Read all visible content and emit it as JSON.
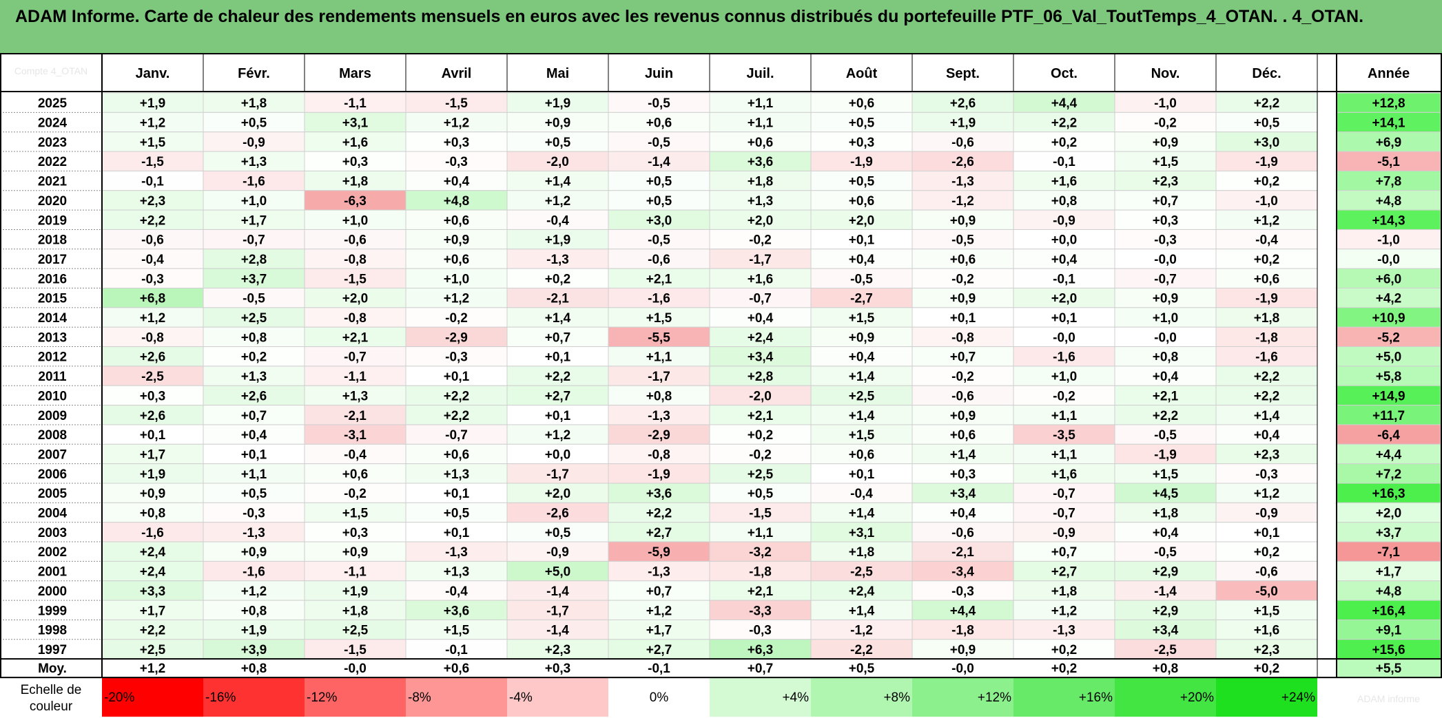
{
  "title": "ADAM Informe. Carte de chaleur des rendements mensuels en euros avec les revenus connus distribués du portefeuille PTF_06_Val_ToutTemps_4_OTAN. . 4_OTAN.",
  "corner_label": "Compte 4_OTAN",
  "colors": {
    "title_bg": "#7ec87e",
    "grid": "#c8c8c8",
    "border": "#000000",
    "neg_strong": "#ff0000",
    "pos_strong": "#1fe01f",
    "neutral": "#ffffff"
  },
  "chart_data": {
    "type": "heatmap",
    "unit": "%",
    "columns": [
      "Janv.",
      "Févr.",
      "Mars",
      "Avril",
      "Mai",
      "Juin",
      "Juil.",
      "Août",
      "Sept.",
      "Oct.",
      "Nov.",
      "Déc."
    ],
    "annual_header": "Année",
    "rows": [
      {
        "year": "2025",
        "values": [
          "+1,9",
          "+1,8",
          "-1,1",
          "-1,5",
          "+1,9",
          "-0,5",
          "+1,1",
          "+0,6",
          "+2,6",
          "+4,4",
          "-1,0",
          "+2,2"
        ],
        "annual": "+12,8"
      },
      {
        "year": "2024",
        "values": [
          "+1,2",
          "+0,5",
          "+3,1",
          "+1,2",
          "+0,9",
          "+0,6",
          "+1,1",
          "+0,5",
          "+1,9",
          "+2,2",
          "-0,2",
          "+0,5"
        ],
        "annual": "+14,1"
      },
      {
        "year": "2023",
        "values": [
          "+1,5",
          "-0,9",
          "+1,6",
          "+0,3",
          "+0,5",
          "-0,5",
          "+0,6",
          "+0,3",
          "-0,6",
          "+0,2",
          "+0,9",
          "+3,0"
        ],
        "annual": "+6,9"
      },
      {
        "year": "2022",
        "values": [
          "-1,5",
          "+1,3",
          "+0,3",
          "-0,3",
          "-2,0",
          "-1,4",
          "+3,6",
          "-1,9",
          "-2,6",
          "-0,1",
          "+1,5",
          "-1,9"
        ],
        "annual": "-5,1"
      },
      {
        "year": "2021",
        "values": [
          "-0,1",
          "-1,6",
          "+1,8",
          "+0,4",
          "+1,4",
          "+0,5",
          "+1,8",
          "+0,5",
          "-1,3",
          "+1,6",
          "+2,3",
          "+0,2"
        ],
        "annual": "+7,8"
      },
      {
        "year": "2020",
        "values": [
          "+2,3",
          "+1,0",
          "-6,3",
          "+4,8",
          "+1,2",
          "+0,5",
          "+1,3",
          "+0,6",
          "-1,2",
          "+0,8",
          "+0,7",
          "-1,0"
        ],
        "annual": "+4,8"
      },
      {
        "year": "2019",
        "values": [
          "+2,2",
          "+1,7",
          "+1,0",
          "+0,6",
          "-0,4",
          "+3,0",
          "+2,0",
          "+2,0",
          "+0,9",
          "-0,9",
          "+0,3",
          "+1,2"
        ],
        "annual": "+14,3"
      },
      {
        "year": "2018",
        "values": [
          "-0,6",
          "-0,7",
          "-0,6",
          "+0,9",
          "+1,9",
          "-0,5",
          "-0,2",
          "+0,1",
          "-0,5",
          "+0,0",
          "-0,3",
          "-0,4"
        ],
        "annual": "-1,0"
      },
      {
        "year": "2017",
        "values": [
          "-0,4",
          "+2,8",
          "-0,8",
          "+0,6",
          "-1,3",
          "-0,6",
          "-1,7",
          "+0,4",
          "+0,6",
          "+0,4",
          "-0,0",
          "+0,2"
        ],
        "annual": "-0,0"
      },
      {
        "year": "2016",
        "values": [
          "-0,3",
          "+3,7",
          "-1,5",
          "+1,0",
          "+0,2",
          "+2,1",
          "+1,6",
          "-0,5",
          "-0,2",
          "-0,1",
          "-0,7",
          "+0,6"
        ],
        "annual": "+6,0"
      },
      {
        "year": "2015",
        "values": [
          "+6,8",
          "-0,5",
          "+2,0",
          "+1,2",
          "-2,1",
          "-1,6",
          "-0,7",
          "-2,7",
          "+0,9",
          "+2,0",
          "+0,9",
          "-1,9"
        ],
        "annual": "+4,2"
      },
      {
        "year": "2014",
        "values": [
          "+1,2",
          "+2,5",
          "-0,8",
          "-0,2",
          "+1,4",
          "+1,5",
          "+0,4",
          "+1,5",
          "+0,1",
          "+0,1",
          "+1,0",
          "+1,8"
        ],
        "annual": "+10,9"
      },
      {
        "year": "2013",
        "values": [
          "-0,8",
          "+0,8",
          "+2,1",
          "-2,9",
          "+0,7",
          "-5,5",
          "+2,4",
          "+0,9",
          "-0,8",
          "-0,0",
          "-0,0",
          "-1,8"
        ],
        "annual": "-5,2"
      },
      {
        "year": "2012",
        "values": [
          "+2,6",
          "+0,2",
          "-0,7",
          "-0,3",
          "+0,1",
          "+1,1",
          "+3,4",
          "+0,4",
          "+0,7",
          "-1,6",
          "+0,8",
          "-1,6"
        ],
        "annual": "+5,0"
      },
      {
        "year": "2011",
        "values": [
          "-2,5",
          "+1,3",
          "-1,1",
          "+0,1",
          "+2,2",
          "-1,7",
          "+2,8",
          "+1,4",
          "-0,2",
          "+1,0",
          "+0,4",
          "+2,2"
        ],
        "annual": "+5,8"
      },
      {
        "year": "2010",
        "values": [
          "+0,3",
          "+2,6",
          "+1,3",
          "+2,2",
          "+2,7",
          "+0,8",
          "-2,0",
          "+2,5",
          "-0,6",
          "-0,2",
          "+2,1",
          "+2,2"
        ],
        "annual": "+14,9"
      },
      {
        "year": "2009",
        "values": [
          "+2,6",
          "+0,7",
          "-2,1",
          "+2,2",
          "+0,1",
          "-1,3",
          "+2,1",
          "+1,4",
          "+0,9",
          "+1,1",
          "+2,2",
          "+1,4"
        ],
        "annual": "+11,7"
      },
      {
        "year": "2008",
        "values": [
          "+0,1",
          "+0,4",
          "-3,1",
          "-0,7",
          "+1,2",
          "-2,9",
          "+0,2",
          "+1,5",
          "+0,6",
          "-3,5",
          "-0,5",
          "+0,4"
        ],
        "annual": "-6,4"
      },
      {
        "year": "2007",
        "values": [
          "+1,7",
          "+0,1",
          "-0,4",
          "+0,6",
          "+0,0",
          "-0,8",
          "-0,2",
          "+0,6",
          "+1,4",
          "+1,1",
          "-1,9",
          "+2,3"
        ],
        "annual": "+4,4"
      },
      {
        "year": "2006",
        "values": [
          "+1,9",
          "+1,1",
          "+0,6",
          "+1,3",
          "-1,7",
          "-1,9",
          "+2,5",
          "+0,1",
          "+0,3",
          "+1,6",
          "+1,5",
          "-0,3"
        ],
        "annual": "+7,2"
      },
      {
        "year": "2005",
        "values": [
          "+0,9",
          "+0,5",
          "-0,2",
          "+0,1",
          "+2,0",
          "+3,6",
          "+0,5",
          "-0,4",
          "+3,4",
          "-0,7",
          "+4,5",
          "+1,2"
        ],
        "annual": "+16,3"
      },
      {
        "year": "2004",
        "values": [
          "+0,8",
          "-0,3",
          "+1,5",
          "+0,5",
          "-2,6",
          "+2,2",
          "-1,5",
          "+1,4",
          "+0,4",
          "-0,7",
          "+1,8",
          "-0,9"
        ],
        "annual": "+2,0"
      },
      {
        "year": "2003",
        "values": [
          "-1,6",
          "-1,3",
          "+0,3",
          "+0,1",
          "+0,5",
          "+2,7",
          "+1,1",
          "+3,1",
          "-0,6",
          "-0,9",
          "+0,4",
          "+0,1"
        ],
        "annual": "+3,7"
      },
      {
        "year": "2002",
        "values": [
          "+2,4",
          "+0,9",
          "+0,9",
          "-1,3",
          "-0,9",
          "-5,9",
          "-3,2",
          "+1,8",
          "-2,1",
          "+0,7",
          "-0,5",
          "+0,2"
        ],
        "annual": "-7,1"
      },
      {
        "year": "2001",
        "values": [
          "+2,4",
          "-1,6",
          "-1,1",
          "+1,3",
          "+5,0",
          "-1,3",
          "-1,8",
          "-2,5",
          "-3,4",
          "+2,7",
          "+2,9",
          "-0,6"
        ],
        "annual": "+1,7"
      },
      {
        "year": "2000",
        "values": [
          "+3,3",
          "+1,2",
          "+1,9",
          "-0,4",
          "-1,4",
          "+0,7",
          "+2,1",
          "+2,4",
          "-0,3",
          "+1,8",
          "-1,4",
          "-5,0"
        ],
        "annual": "+4,8"
      },
      {
        "year": "1999",
        "values": [
          "+1,7",
          "+0,8",
          "+1,8",
          "+3,6",
          "-1,7",
          "+1,2",
          "-3,3",
          "+1,4",
          "+4,4",
          "+1,2",
          "+2,9",
          "+1,5"
        ],
        "annual": "+16,4"
      },
      {
        "year": "1998",
        "values": [
          "+2,2",
          "+1,9",
          "+2,5",
          "+1,5",
          "-1,4",
          "+1,7",
          "-0,3",
          "-1,2",
          "-1,8",
          "-1,3",
          "+3,4",
          "+1,6"
        ],
        "annual": "+9,1"
      },
      {
        "year": "1997",
        "values": [
          "+2,5",
          "+3,9",
          "-1,5",
          "-0,1",
          "+2,3",
          "+2,7",
          "+6,3",
          "-2,2",
          "+0,9",
          "+0,2",
          "-2,5",
          "+2,3"
        ],
        "annual": "+15,6"
      }
    ],
    "average": {
      "label": "Moy.",
      "values": [
        "+1,2",
        "+0,8",
        "-0,0",
        "+0,6",
        "+0,3",
        "-0,1",
        "+0,7",
        "+0,5",
        "-0,0",
        "+0,2",
        "+0,8",
        "+0,2"
      ],
      "annual": "+5,5"
    },
    "color_scale": {
      "label": "Echelle de couleur",
      "steps": [
        {
          "text": "-20%",
          "value": -20
        },
        {
          "text": "-16%",
          "value": -16
        },
        {
          "text": "-12%",
          "value": -12
        },
        {
          "text": "-8%",
          "value": -8
        },
        {
          "text": "-4%",
          "value": -4
        },
        {
          "text": "0%",
          "value": 0
        },
        {
          "text": "+4%",
          "value": 4
        },
        {
          "text": "+8%",
          "value": 8
        },
        {
          "text": "+12%",
          "value": 12
        },
        {
          "text": "+16%",
          "value": 16
        },
        {
          "text": "+20%",
          "value": 20
        },
        {
          "text": "+24%",
          "value": 24
        }
      ],
      "ghost_label": "ADAM informe"
    }
  }
}
